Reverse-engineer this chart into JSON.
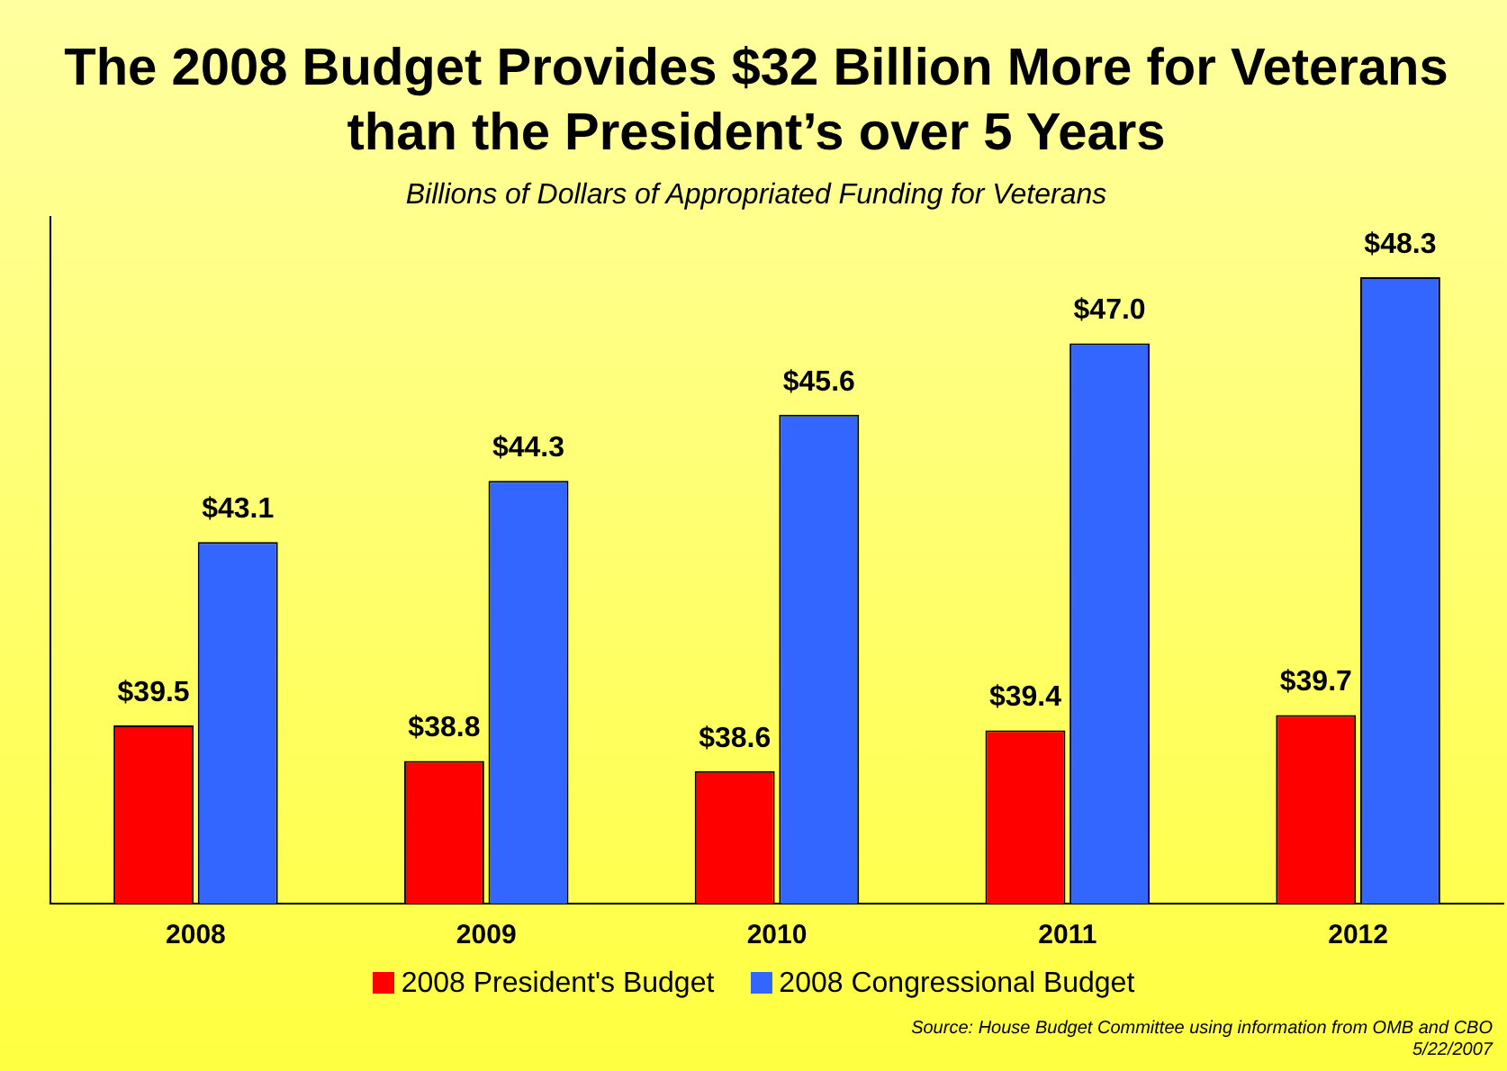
{
  "chart_data": {
    "type": "bar",
    "title": "The 2008 Budget Provides $32 Billion More for Veterans than the President’s over 5 Years",
    "subtitle": "Billions of Dollars of Appropriated Funding for Veterans",
    "categories": [
      "2008",
      "2009",
      "2010",
      "2011",
      "2012"
    ],
    "series": [
      {
        "name": "2008 President's Budget",
        "color": "#ff0000",
        "values": [
          39.5,
          38.8,
          38.6,
          39.4,
          39.7
        ],
        "value_labels": [
          "$39.5",
          "$38.8",
          "$38.6",
          "$39.4",
          "$39.7"
        ]
      },
      {
        "name": "2008 Congressional Budget",
        "color": "#3366ff",
        "values": [
          43.1,
          44.3,
          45.6,
          47.0,
          48.3
        ],
        "value_labels": [
          "$43.1",
          "$44.3",
          "$45.6",
          "$47.0",
          "$48.3"
        ]
      }
    ],
    "ylim": [
      36,
      49.5
    ],
    "tick_labels": "x",
    "grid": false,
    "legend": "bottom",
    "annotations": [
      "Source: House Budget Committee using information from OMB and CBO",
      "5/22/2007"
    ]
  }
}
